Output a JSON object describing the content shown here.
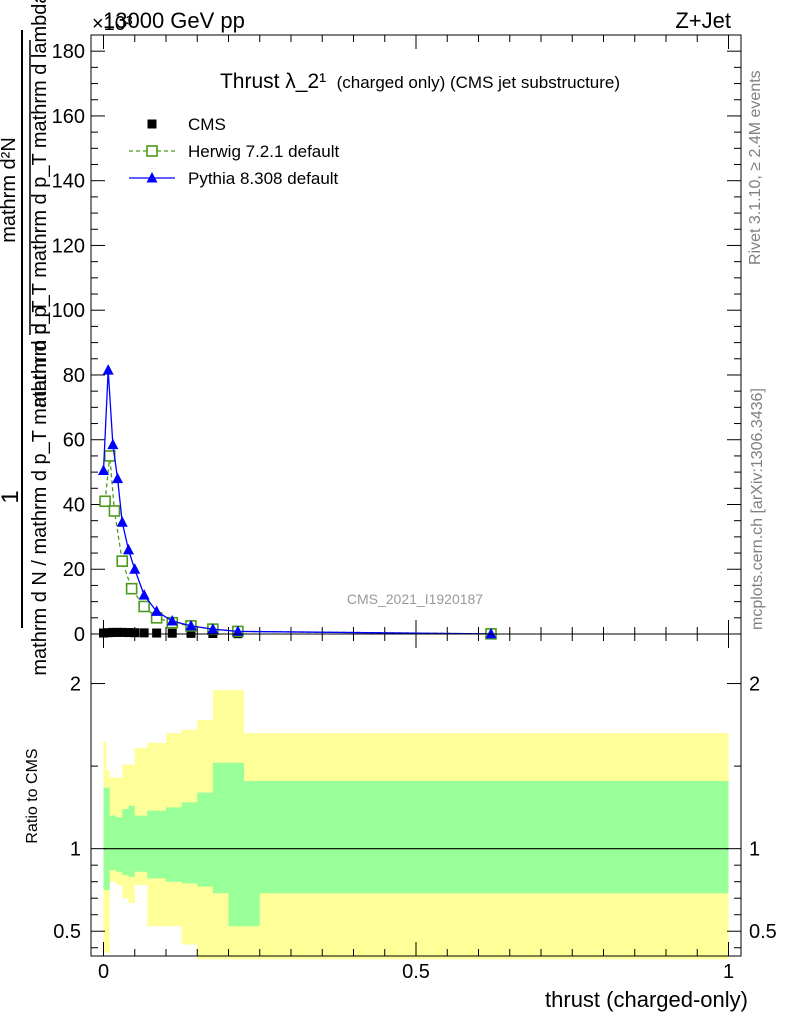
{
  "header": {
    "energy": "13000 GeV pp",
    "process": "Z+Jet",
    "exponent": "×10³"
  },
  "side_labels": {
    "rivet": "Rivet 3.1.10, ≥ 2.4M events",
    "mcplots": "mcplots.cern.ch [arXiv:1306.3436]"
  },
  "watermark": "CMS_2021_I1920187",
  "chart_data": [
    {
      "type": "line",
      "title": "Thrust λ_2¹",
      "title_suffix": "(charged only) (CMS jet substructure)",
      "ylabel_numerator": "mathrm d²N",
      "ylabel_den1": "mathrm d p_T mathrm d p_T mathrm d lambda",
      "ylabel_den2": "mathrm d N / mathrm d p_T mathrm d p_T",
      "ylabel_one": "1",
      "yscale_label": "×10³",
      "xlim": [
        -0.02,
        1.02
      ],
      "ylim": [
        0,
        185
      ],
      "yticks": [
        0,
        20,
        40,
        60,
        80,
        100,
        120,
        140,
        160,
        180
      ],
      "legend_position": "top-left",
      "series": [
        {
          "name": "CMS",
          "color": "#000000",
          "marker": "square-filled",
          "x": [
            0.0,
            0.0075,
            0.015,
            0.0225,
            0.03,
            0.04,
            0.05,
            0.065,
            0.085,
            0.11,
            0.14,
            0.175,
            0.215,
            0.62
          ],
          "y": [
            0.3,
            0.4,
            0.5,
            0.5,
            0.5,
            0.45,
            0.4,
            0.35,
            0.3,
            0.25,
            0.2,
            0.15,
            0.1,
            0.05
          ]
        },
        {
          "name": "Herwig 7.2.1 default",
          "color": "#4d9a1a",
          "marker": "square-open",
          "dashed": true,
          "x": [
            0.0025,
            0.01,
            0.0175,
            0.03,
            0.045,
            0.065,
            0.085,
            0.11,
            0.14,
            0.175,
            0.215,
            0.62
          ],
          "y": [
            41,
            55,
            38,
            22.5,
            14,
            8.5,
            5,
            3.5,
            2.5,
            1.5,
            0.8,
            0.05
          ]
        },
        {
          "name": "Pythia 8.308 default",
          "color": "#0000ff",
          "marker": "triangle-filled",
          "x": [
            0.0,
            0.0075,
            0.015,
            0.0225,
            0.03,
            0.04,
            0.05,
            0.065,
            0.085,
            0.11,
            0.14,
            0.175,
            0.215,
            0.62
          ],
          "y": [
            50.5,
            81.5,
            58.5,
            48,
            34.5,
            26,
            20,
            12,
            7,
            4,
            2.5,
            1.5,
            0.8,
            0.05
          ]
        }
      ]
    },
    {
      "type": "area",
      "ylabel": "Ratio to CMS",
      "xlabel": "thrust (charged-only)",
      "xlim": [
        -0.02,
        1.02
      ],
      "ylim": [
        0.35,
        2.3
      ],
      "xticks": [
        0,
        0.5,
        1
      ],
      "xtick_labels": [
        "0",
        "0.5",
        "1"
      ],
      "yticks": [
        0.5,
        1,
        2
      ],
      "ytick_labels": [
        "0.5",
        "1",
        "2"
      ],
      "reference_line": 1,
      "bands": {
        "edges": [
          0.0,
          0.005,
          0.01,
          0.02,
          0.03,
          0.04,
          0.05,
          0.07,
          0.1,
          0.125,
          0.15,
          0.175,
          0.2,
          0.225,
          0.25,
          1.0
        ],
        "outer_color": "#ffff99",
        "inner_color": "#99ff99",
        "outer_low": [
          0.37,
          0.37,
          0.8,
          0.78,
          0.7,
          0.67,
          0.78,
          0.53,
          0.53,
          0.42,
          0.33,
          0.33,
          0.33,
          0.33,
          0.33
        ],
        "outer_high": [
          1.65,
          1.47,
          1.43,
          1.43,
          1.51,
          1.51,
          1.61,
          1.64,
          1.7,
          1.72,
          1.78,
          1.96,
          1.96,
          1.7,
          1.7
        ],
        "inner_low": [
          0.75,
          0.75,
          0.87,
          0.86,
          0.84,
          0.83,
          0.86,
          0.82,
          0.8,
          0.79,
          0.77,
          0.73,
          0.53,
          0.53,
          0.73
        ],
        "inner_high": [
          1.37,
          1.37,
          1.2,
          1.19,
          1.24,
          1.26,
          1.2,
          1.23,
          1.25,
          1.28,
          1.34,
          1.52,
          1.52,
          1.41,
          1.41
        ]
      }
    }
  ]
}
